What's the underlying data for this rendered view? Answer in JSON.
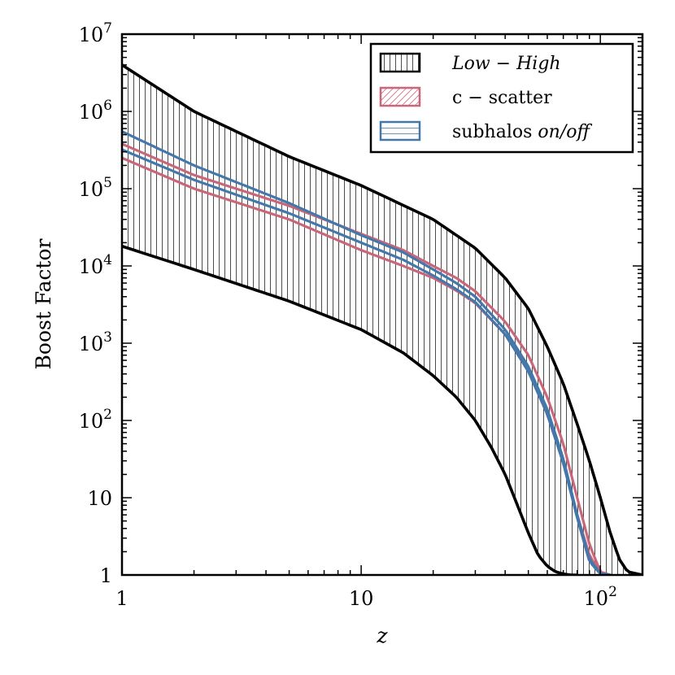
{
  "chart_data": {
    "type": "line",
    "title": "",
    "xlabel": "z",
    "ylabel": "Boost Factor",
    "xscale": "log",
    "yscale": "log",
    "xlim": [
      1,
      150
    ],
    "ylim": [
      1,
      10000000
    ],
    "grid": false,
    "legend_position": "top-right",
    "x_ticks": [
      {
        "value": 1,
        "base": "1",
        "exp": ""
      },
      {
        "value": 10,
        "base": "10",
        "exp": ""
      },
      {
        "value": 100,
        "base": "10",
        "exp": "2"
      }
    ],
    "y_ticks": [
      {
        "value": 1,
        "base": "1",
        "exp": ""
      },
      {
        "value": 10,
        "base": "10",
        "exp": ""
      },
      {
        "value": 100,
        "base": "10",
        "exp": "2"
      },
      {
        "value": 1000,
        "base": "10",
        "exp": "3"
      },
      {
        "value": 10000,
        "base": "10",
        "exp": "4"
      },
      {
        "value": 100000,
        "base": "10",
        "exp": "5"
      },
      {
        "value": 1000000,
        "base": "10",
        "exp": "6"
      },
      {
        "value": 10000000,
        "base": "10",
        "exp": "7"
      }
    ],
    "legend": [
      {
        "key": "band",
        "label": "Low − High",
        "color": "#000000",
        "hatch": "vertical"
      },
      {
        "key": "cscatter",
        "label": "c − scatter",
        "color": "#c9677a",
        "hatch": "diagonal"
      },
      {
        "key": "subhalos",
        "label_prefix": "subhalos ",
        "label_italic": "on/off",
        "color": "#4478aa",
        "hatch": "horizontal"
      }
    ],
    "band": {
      "name": "Low − High",
      "color": "#000000",
      "upper": {
        "x": [
          1,
          2,
          5,
          10,
          20,
          30,
          40,
          50,
          60,
          70,
          80,
          90,
          100,
          110,
          120,
          130,
          150
        ],
        "y": [
          4000000,
          1000000,
          260000,
          110000,
          40000,
          17000,
          7000,
          2800,
          900,
          300,
          90,
          30,
          10,
          3.5,
          1.6,
          1.1,
          1
        ]
      },
      "lower": {
        "x": [
          1,
          2,
          5,
          10,
          15,
          20,
          25,
          30,
          35,
          40,
          45,
          50,
          55,
          60,
          65,
          70,
          75,
          80
        ],
        "y": [
          18000,
          9000,
          3500,
          1500,
          750,
          380,
          200,
          100,
          45,
          20,
          8,
          3.5,
          1.8,
          1.3,
          1.1,
          1.03,
          1.0,
          1.0
        ]
      }
    },
    "series": [
      {
        "name": "c − scatter (high)",
        "group": "cscatter",
        "color": "#c9677a",
        "x": [
          1,
          2,
          5,
          10,
          15,
          20,
          25,
          30,
          40,
          50,
          60,
          70,
          80,
          90,
          100,
          110
        ],
        "y": [
          380000,
          150000,
          60000,
          26000,
          16000,
          10000,
          7000,
          4700,
          1900,
          700,
          200,
          50,
          10,
          2.5,
          1.1,
          1.0
        ]
      },
      {
        "name": "c − scatter (low)",
        "group": "cscatter",
        "color": "#c9677a",
        "x": [
          1,
          2,
          5,
          10,
          15,
          20,
          25,
          30,
          40,
          50,
          60,
          70,
          80,
          90,
          100,
          110
        ],
        "y": [
          250000,
          100000,
          40000,
          16000,
          10000,
          7000,
          4800,
          3300,
          1300,
          450,
          130,
          30,
          6,
          1.8,
          1.05,
          1.0
        ]
      },
      {
        "name": "subhalos on",
        "group": "subhalos",
        "color": "#4478aa",
        "x": [
          1,
          2,
          5,
          10,
          15,
          20,
          25,
          30,
          40,
          50,
          60,
          70,
          80,
          90,
          100,
          110
        ],
        "y": [
          550000,
          200000,
          65000,
          25000,
          15000,
          9000,
          6000,
          4000,
          1500,
          500,
          140,
          32,
          6,
          1.6,
          1.05,
          1.0
        ]
      },
      {
        "name": "subhalos off",
        "group": "subhalos",
        "color": "#4478aa",
        "x": [
          1,
          2,
          5,
          10,
          15,
          20,
          25,
          30,
          40,
          50,
          60,
          70,
          80,
          90,
          100,
          110
        ],
        "y": [
          320000,
          130000,
          48000,
          20000,
          12000,
          7500,
          5000,
          3400,
          1300,
          430,
          120,
          28,
          5.5,
          1.5,
          1.03,
          1.0
        ]
      }
    ]
  }
}
